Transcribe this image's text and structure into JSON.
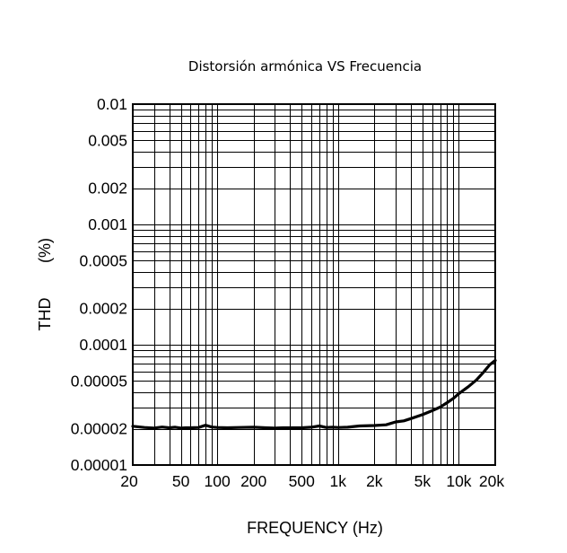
{
  "chart_data": {
    "type": "line",
    "title": "Distorsión armónica VS Frecuencia",
    "xlabel": "FREQUENCY (Hz)",
    "ylabel_left": "THD",
    "ylabel_right": "(%)",
    "x_scale": "log",
    "y_scale": "log",
    "xlim": [
      20,
      20000
    ],
    "ylim": [
      1e-05,
      0.01
    ],
    "grid": true,
    "x_ticks": [
      {
        "value": 20,
        "label": "20"
      },
      {
        "value": 50,
        "label": "50"
      },
      {
        "value": 100,
        "label": "100"
      },
      {
        "value": 200,
        "label": "200"
      },
      {
        "value": 500,
        "label": "500"
      },
      {
        "value": 1000,
        "label": "1k"
      },
      {
        "value": 2000,
        "label": "2k"
      },
      {
        "value": 5000,
        "label": "5k"
      },
      {
        "value": 10000,
        "label": "10k"
      },
      {
        "value": 20000,
        "label": "20k"
      }
    ],
    "y_ticks": [
      {
        "value": 0.01,
        "label": "0.01"
      },
      {
        "value": 0.005,
        "label": "0.005"
      },
      {
        "value": 0.002,
        "label": "0.002"
      },
      {
        "value": 0.001,
        "label": "0.001"
      },
      {
        "value": 0.0005,
        "label": "0.0005"
      },
      {
        "value": 0.0002,
        "label": "0.0002"
      },
      {
        "value": 0.0001,
        "label": "0.0001"
      },
      {
        "value": 5e-05,
        "label": "0.00005"
      },
      {
        "value": 2e-05,
        "label": "0.00002"
      },
      {
        "value": 1e-05,
        "label": "0.00001"
      }
    ],
    "series": [
      {
        "color": "#000000",
        "x": [
          20,
          25,
          30,
          35,
          40,
          45,
          50,
          55,
          60,
          70,
          80,
          90,
          100,
          120,
          150,
          200,
          250,
          300,
          350,
          400,
          500,
          600,
          700,
          800,
          900,
          1000,
          1200,
          1500,
          2000,
          2500,
          3000,
          3500,
          4000,
          5000,
          6000,
          7000,
          8000,
          9000,
          10000,
          12000,
          14000,
          16000,
          18000,
          20000
        ],
        "y": [
          2.1e-05,
          2.05e-05,
          2.03e-05,
          2.07e-05,
          2.04e-05,
          2.06e-05,
          2.03e-05,
          2.04e-05,
          2.04e-05,
          2.05e-05,
          2.14e-05,
          2.07e-05,
          2.05e-05,
          2.04e-05,
          2.05e-05,
          2.06e-05,
          2.04e-05,
          2.03e-05,
          2.04e-05,
          2.04e-05,
          2.04e-05,
          2.06e-05,
          2.11e-05,
          2.05e-05,
          2.06e-05,
          2.05e-05,
          2.06e-05,
          2.11e-05,
          2.13e-05,
          2.16e-05,
          2.28e-05,
          2.33e-05,
          2.43e-05,
          2.62e-05,
          2.83e-05,
          3.03e-05,
          3.3e-05,
          3.58e-05,
          3.93e-05,
          4.48e-05,
          5.1e-05,
          5.9e-05,
          6.8e-05,
          7.4e-05
        ]
      }
    ]
  }
}
